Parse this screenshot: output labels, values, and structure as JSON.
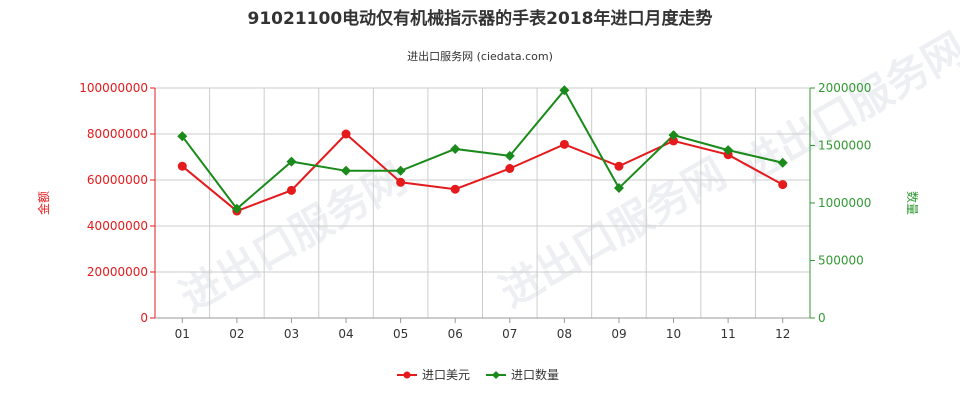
{
  "colors": {
    "amount": "#e41a1c",
    "quantity": "#1a8a1a",
    "left_axis": "#e41a1c",
    "right_axis": "#339933",
    "grid": "#cccccc"
  },
  "watermark": "进出口服务网",
  "chart_data": {
    "type": "line",
    "title": "91021100电动仅有机械指示器的手表2018年进口月度走势",
    "subtitle": "进出口服务网 (ciedata.com)",
    "categories": [
      "01",
      "02",
      "03",
      "04",
      "05",
      "06",
      "07",
      "08",
      "09",
      "10",
      "11",
      "12"
    ],
    "ylabel_left": "金额",
    "ylabel_right": "数量",
    "ylim_left": [
      0,
      100000000
    ],
    "ylim_right": [
      0,
      2000000
    ],
    "yticks_left": [
      "0",
      "20000000",
      "40000000",
      "60000000",
      "80000000",
      "100000000"
    ],
    "yticks_right": [
      "0",
      "500000",
      "1000000",
      "1500000",
      "2000000"
    ],
    "grid": true,
    "legend_position": "bottom-center",
    "series": [
      {
        "name": "进口美元",
        "axis": "left",
        "values": [
          66000000,
          46500000,
          55500000,
          80000000,
          59000000,
          56000000,
          65000000,
          75500000,
          66000000,
          77000000,
          71000000,
          58000000
        ]
      },
      {
        "name": "进口数量",
        "axis": "right",
        "values": [
          1580000,
          950000,
          1360000,
          1280000,
          1280000,
          1470000,
          1410000,
          1980000,
          1130000,
          1590000,
          1460000,
          1350000
        ]
      }
    ]
  }
}
